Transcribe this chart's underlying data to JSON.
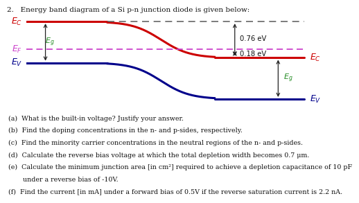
{
  "title": "2.   Energy band diagram of a Si p-n junction diode is given below:",
  "title_fontsize": 7.5,
  "bg_color": "#ffffff",
  "Ec_color": "#cc0000",
  "Ev_color": "#00008b",
  "EF_color": "#cc44cc",
  "arrow_color": "#222222",
  "dash_color": "#666666",
  "Eg_color": "#228B22",
  "annotation_076": "0.76 eV",
  "annotation_018": "0.18 eV",
  "questions": [
    "(a)  What is the built-in voltage? Justify your answer.",
    "(b)  Find the doping concentrations in the n- and p-sides, respectively.",
    "(c)  Find the minority carrier concentrations in the neutral regions of the n- and p-sides.",
    "(d)  Calculate the reverse bias voltage at which the total depletion width becomes 0.7 μm.",
    "(e)  Calculate the minimum junction area [in cm²] required to achieve a depletion capacitance of 10 pF",
    "       under a reverse bias of -10V.",
    "(f)  Find the current [in mA] under a forward bias of 0.5V if the reverse saturation current is 2.2 nA."
  ],
  "q_fontsize": 6.8
}
